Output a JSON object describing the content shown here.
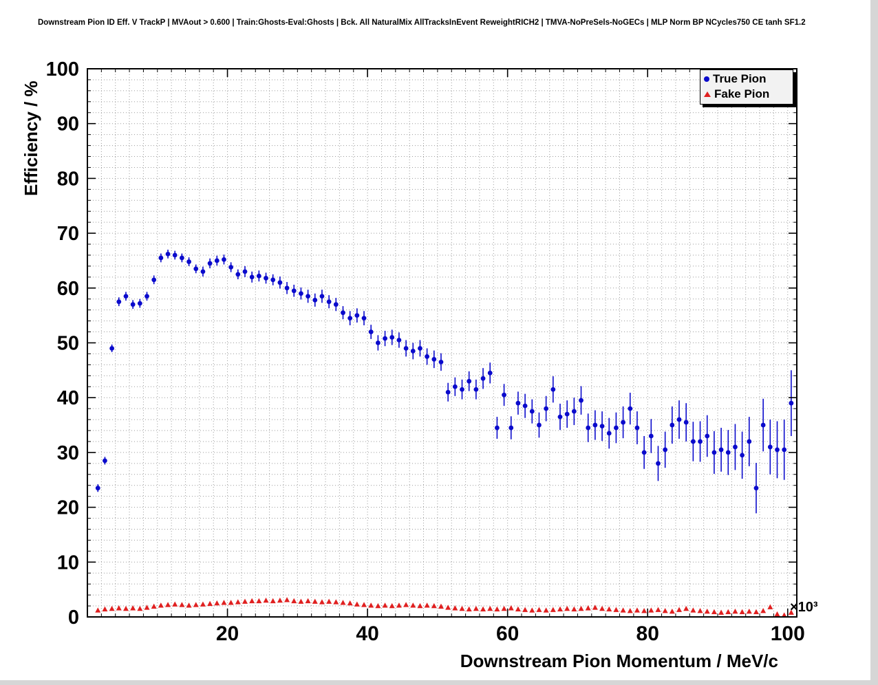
{
  "chart_data": {
    "type": "scatter",
    "title": "Downstream Pion ID Eff. V TrackP | MVAout > 0.600 | Train:Ghosts-Eval:Ghosts | Bck. All NaturalMix AllTracksInEvent ReweightRICH2 | TMVA-NoPreSels-NoGECs | MLP Norm BP NCycles750 CE tanh SF1.2",
    "xlabel": "Downstream Pion Momentum / MeV/c",
    "ylabel": "Efficiency / %",
    "x_multiplier": "×10³",
    "x_unit_scale": 1000,
    "xlim": [
      0,
      101.3
    ],
    "ylim": [
      0,
      100
    ],
    "x_ticks_labeled": [
      20,
      40,
      60,
      80,
      100
    ],
    "y_ticks_labeled": [
      0,
      10,
      20,
      30,
      40,
      50,
      60,
      70,
      80,
      90,
      100
    ],
    "grid_step": 2,
    "grid": true,
    "legend_position": "top-right",
    "legend": [
      "True Pion",
      "Fake Pion"
    ],
    "colors": {
      "grid": "#9a9a9a",
      "frame": "#000000",
      "legend_bg": "#f2f2f2",
      "true_pion": "#0a0acc",
      "fake_pion": "#e02020"
    },
    "x": [
      1.5,
      2.5,
      3.5,
      4.5,
      5.5,
      6.5,
      7.5,
      8.5,
      9.5,
      10.5,
      11.5,
      12.5,
      13.5,
      14.5,
      15.5,
      16.5,
      17.5,
      18.5,
      19.5,
      20.5,
      21.5,
      22.5,
      23.5,
      24.5,
      25.5,
      26.5,
      27.5,
      28.5,
      29.5,
      30.5,
      31.5,
      32.5,
      33.5,
      34.5,
      35.5,
      36.5,
      37.5,
      38.5,
      39.5,
      40.5,
      41.5,
      42.5,
      43.5,
      44.5,
      45.5,
      46.5,
      47.5,
      48.5,
      49.5,
      50.5,
      51.5,
      52.5,
      53.5,
      54.5,
      55.5,
      56.5,
      57.5,
      58.5,
      59.5,
      60.5,
      61.5,
      62.5,
      63.5,
      64.5,
      65.5,
      66.5,
      67.5,
      68.5,
      69.5,
      70.5,
      71.5,
      72.5,
      73.5,
      74.5,
      75.5,
      76.5,
      77.5,
      78.5,
      79.5,
      80.5,
      81.5,
      82.5,
      83.5,
      84.5,
      85.5,
      86.5,
      87.5,
      88.5,
      89.5,
      90.5,
      91.5,
      92.5,
      93.5,
      94.5,
      95.5,
      96.5,
      97.5,
      98.5,
      99.5,
      100.5
    ],
    "series": [
      {
        "name": "True Pion",
        "marker": "circle",
        "color": "#0a0acc",
        "y": [
          23.5,
          28.5,
          49.0,
          57.5,
          58.5,
          57.0,
          57.2,
          58.5,
          61.5,
          65.5,
          66.2,
          66.0,
          65.5,
          64.8,
          63.5,
          63.0,
          64.5,
          65.0,
          65.2,
          63.8,
          62.5,
          63.0,
          62.0,
          62.2,
          61.8,
          61.5,
          61.0,
          60.0,
          59.5,
          59.0,
          58.5,
          57.8,
          58.5,
          57.5,
          57.0,
          55.5,
          54.5,
          55.0,
          54.5,
          52.0,
          50.0,
          50.8,
          51.0,
          50.5,
          49.0,
          48.5,
          49.0,
          47.5,
          47.0,
          46.5,
          41.0,
          42.0,
          41.5,
          43.0,
          41.5,
          43.5,
          44.5,
          34.5,
          40.5,
          34.5,
          39.0,
          38.5,
          37.5,
          35.0,
          38.0,
          41.5,
          36.5,
          37.0,
          37.5,
          39.5,
          34.5,
          35.0,
          34.8,
          33.5,
          34.5,
          35.5,
          38.0,
          34.5,
          30.0,
          33.0,
          28.0,
          30.5,
          35.0,
          36.0,
          35.5,
          32.0,
          32.0,
          33.0,
          30.0,
          30.5,
          30.0,
          31.0,
          29.5,
          32.0,
          23.5,
          35.0,
          31.0,
          30.5,
          30.5,
          39.0
        ],
        "yerr": [
          0.7,
          0.7,
          0.7,
          0.8,
          0.8,
          0.8,
          0.8,
          0.8,
          0.8,
          0.8,
          0.8,
          0.8,
          0.8,
          0.8,
          0.8,
          0.9,
          0.9,
          0.9,
          0.9,
          0.9,
          0.9,
          1.0,
          1.0,
          1.0,
          1.0,
          1.0,
          1.1,
          1.1,
          1.1,
          1.1,
          1.2,
          1.2,
          1.2,
          1.2,
          1.2,
          1.2,
          1.3,
          1.3,
          1.3,
          1.3,
          1.4,
          1.4,
          1.4,
          1.4,
          1.5,
          1.5,
          1.5,
          1.5,
          1.6,
          1.6,
          1.7,
          1.7,
          1.8,
          1.8,
          1.8,
          1.9,
          1.9,
          2.0,
          2.0,
          2.1,
          2.1,
          2.2,
          2.2,
          2.3,
          2.3,
          2.4,
          2.4,
          2.5,
          2.5,
          2.6,
          2.6,
          2.7,
          2.7,
          2.8,
          2.8,
          2.9,
          2.9,
          3.0,
          3.0,
          3.1,
          3.2,
          3.3,
          3.4,
          3.5,
          3.5,
          3.6,
          3.7,
          3.8,
          3.9,
          4.0,
          4.1,
          4.2,
          4.3,
          4.5,
          4.6,
          4.8,
          5.0,
          5.2,
          5.5,
          6.0
        ]
      },
      {
        "name": "Fake Pion",
        "marker": "triangle",
        "color": "#e02020",
        "y": [
          1.2,
          1.4,
          1.5,
          1.6,
          1.5,
          1.6,
          1.5,
          1.7,
          1.9,
          2.1,
          2.2,
          2.3,
          2.2,
          2.1,
          2.2,
          2.3,
          2.4,
          2.5,
          2.6,
          2.6,
          2.7,
          2.8,
          2.9,
          2.9,
          3.0,
          2.9,
          3.0,
          3.1,
          2.9,
          2.8,
          2.9,
          2.8,
          2.7,
          2.8,
          2.7,
          2.6,
          2.5,
          2.3,
          2.2,
          2.1,
          2.0,
          2.1,
          2.0,
          2.1,
          2.2,
          2.1,
          2.0,
          2.1,
          2.0,
          1.9,
          1.7,
          1.6,
          1.5,
          1.4,
          1.5,
          1.4,
          1.5,
          1.4,
          1.5,
          1.6,
          1.4,
          1.3,
          1.2,
          1.3,
          1.2,
          1.3,
          1.4,
          1.5,
          1.4,
          1.5,
          1.6,
          1.7,
          1.5,
          1.4,
          1.3,
          1.2,
          1.1,
          1.2,
          1.1,
          1.2,
          1.3,
          1.1,
          1.0,
          1.3,
          1.5,
          1.2,
          1.1,
          1.0,
          0.9,
          0.8,
          0.9,
          1.0,
          0.9,
          1.0,
          0.9,
          1.1,
          1.8,
          0.5,
          0.3,
          0.8
        ],
        "yerr": 0.15
      }
    ]
  }
}
